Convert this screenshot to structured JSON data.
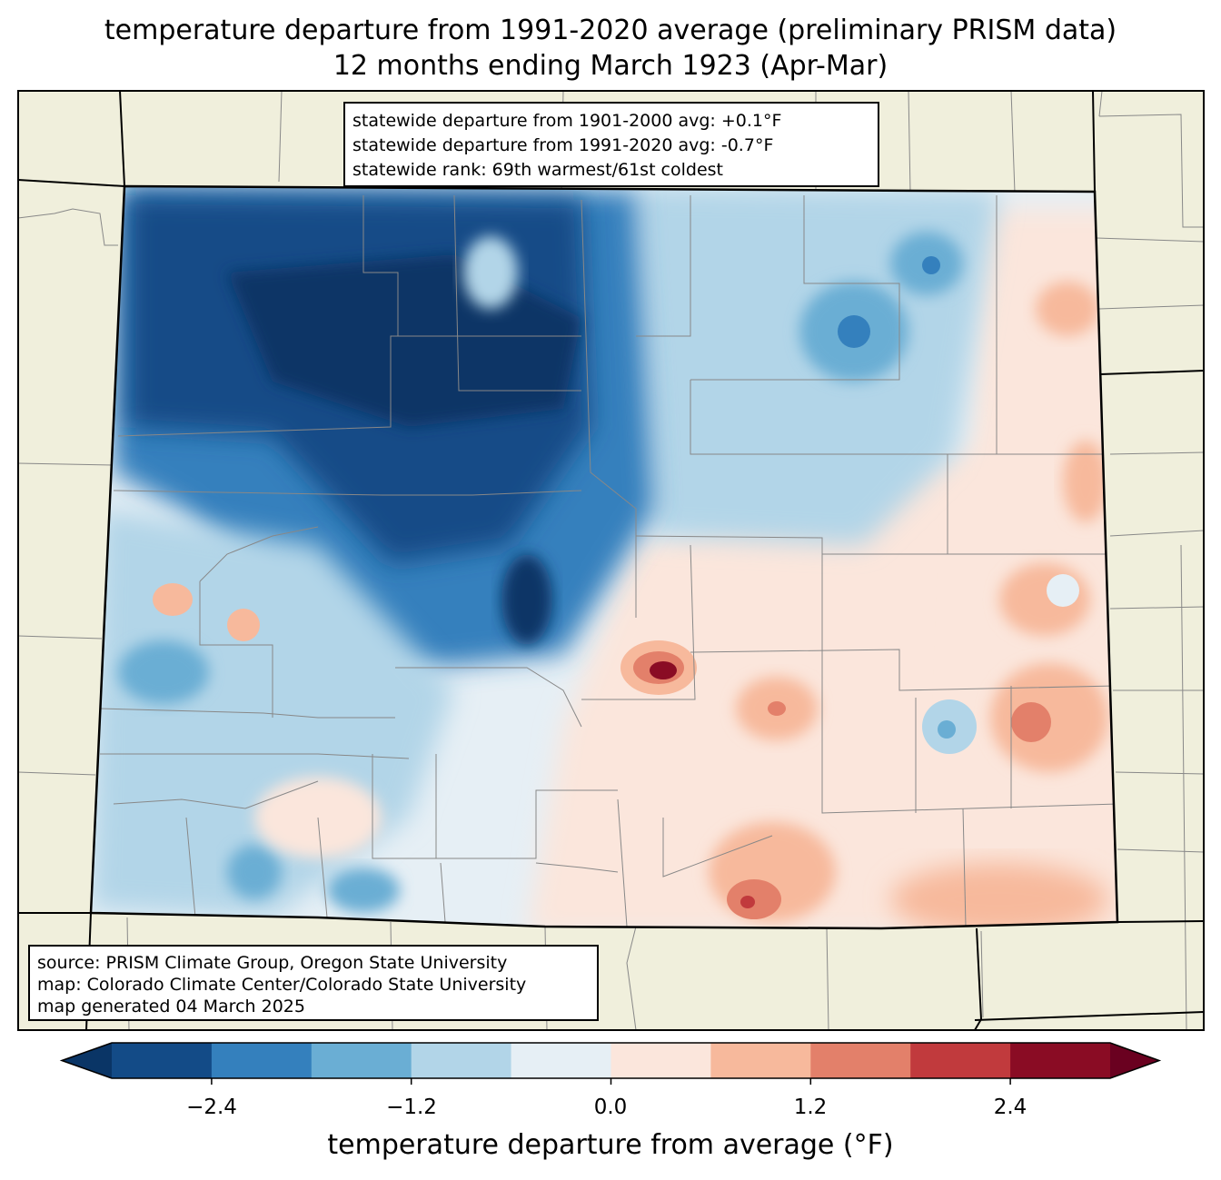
{
  "title_line1": "temperature departure from 1991-2020 average (preliminary PRISM data)",
  "title_line2": "12 months ending March 1923 (Apr-Mar)",
  "stats_box": {
    "line1": "statewide departure from 1901-2000 avg: +0.1°F",
    "line2": "statewide departure from 1991-2020 avg: -0.7°F",
    "line3": "statewide rank: 69th warmest/61st coldest"
  },
  "source_box": {
    "line1": "source: PRISM Climate Group, Oregon State University",
    "line2": "map: Colorado Climate Center/Colorado State University",
    "line3": "map generated 04 March 2025"
  },
  "colorbar": {
    "label": "temperature departure from average (°F)",
    "ticks": [
      "−2.4",
      "−1.2",
      "0.0",
      "1.2",
      "2.4"
    ],
    "bins": [
      {
        "min": -3.0,
        "max": -2.4,
        "color": "#134b87"
      },
      {
        "min": -2.4,
        "max": -1.8,
        "color": "#3480bd"
      },
      {
        "min": -1.8,
        "max": -1.2,
        "color": "#6aaed4"
      },
      {
        "min": -1.2,
        "max": -0.6,
        "color": "#b2d5e8"
      },
      {
        "min": -0.6,
        "max": 0.0,
        "color": "#e6eff5"
      },
      {
        "min": 0.0,
        "max": 0.6,
        "color": "#fbe6dc"
      },
      {
        "min": 0.6,
        "max": 1.2,
        "color": "#f7b99c"
      },
      {
        "min": 1.2,
        "max": 1.8,
        "color": "#e3806a"
      },
      {
        "min": 1.8,
        "max": 2.4,
        "color": "#c13a3d"
      },
      {
        "min": 2.4,
        "max": 3.0,
        "color": "#8a0c24"
      }
    ],
    "under_color": "#0a3566",
    "over_color": "#6a0120"
  },
  "land_color": "#f0efdc"
}
